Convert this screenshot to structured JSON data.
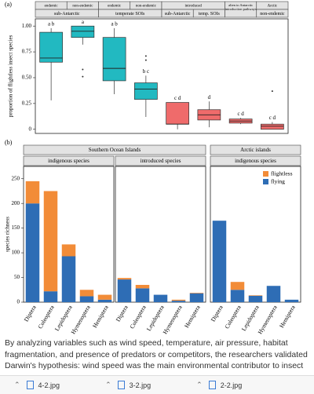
{
  "chart_data": [
    {
      "type": "boxplot",
      "panel_label": "(a)",
      "ylabel": "proportion of flightless insect species",
      "strip_top": [
        "endemic",
        "non-endemic",
        "endemic",
        "non-endemic",
        "introduced",
        "alien to Antarctic introduction pathways",
        "Arctic"
      ],
      "strip_bottom": [
        "sub-Antarctic",
        "temperate SOIs",
        "sub-Antarctic",
        "temp. SOIs",
        "non-endemic"
      ],
      "ylim": [
        -0.04,
        1.07
      ],
      "yticks": [
        0,
        0.25,
        {
          "value": 0.5,
          "label": "0.50"
        },
        0.75,
        {
          "value": 1,
          "label": "1.00"
        }
      ],
      "boxes": [
        {
          "low": 0.28,
          "q1": 0.65,
          "median": 0.69,
          "q3": 0.94,
          "high": 0.98,
          "outliers": [],
          "label": "a b",
          "color": "#22b9c1"
        },
        {
          "low": 0.82,
          "q1": 0.89,
          "median": 0.95,
          "q3": 1.0,
          "high": 1.0,
          "outliers": [
            0.58,
            0.51
          ],
          "label": "a",
          "color": "#22b9c1"
        },
        {
          "low": 0.34,
          "q1": 0.47,
          "median": 0.59,
          "q3": 0.89,
          "high": 0.98,
          "outliers": [],
          "label": "a b",
          "color": "#22b9c1"
        },
        {
          "low": 0.12,
          "q1": 0.29,
          "median": 0.39,
          "q3": 0.45,
          "high": 0.52,
          "outliers": [
            0.71,
            0.67
          ],
          "label": "b c",
          "color": "#22b9c1"
        },
        {
          "low": 0.0,
          "q1": 0.05,
          "median": 0.05,
          "q3": 0.26,
          "high": 0.26,
          "outliers": [],
          "label": "c d",
          "color": "#ef6b6b"
        },
        {
          "low": 0.02,
          "q1": 0.09,
          "median": 0.14,
          "q3": 0.19,
          "high": 0.27,
          "outliers": [],
          "label": "d",
          "color": "#ef6b6b"
        },
        {
          "low": 0.05,
          "q1": 0.06,
          "median": 0.08,
          "q3": 0.1,
          "high": 0.11,
          "outliers": [],
          "label": "c d",
          "color": "#ef6b6b"
        },
        {
          "low": 0.0,
          "q1": 0.0,
          "median": 0.03,
          "q3": 0.05,
          "high": 0.07,
          "outliers": [
            0.37
          ],
          "label": "c d",
          "color": "#ef6b6b"
        }
      ]
    },
    {
      "type": "stacked_bar",
      "panel_label": "(b)",
      "ylabel": "species richness",
      "groups": [
        "Southern Ocean Islands",
        "Arctic islands"
      ],
      "ylim": [
        0,
        275
      ],
      "yticks": [
        0,
        50,
        100,
        150,
        200,
        250
      ],
      "legend": "top-right",
      "series": [
        {
          "name": "flightless",
          "color": "#f28c38"
        },
        {
          "name": "flying",
          "color": "#2e6db5"
        }
      ],
      "facets": [
        {
          "name": "indigenous species",
          "categories": [
            "Diptera",
            "Coleoptera",
            "Lepidoptera",
            "Hymenoptera",
            "Hemiptera"
          ],
          "series": [
            {
              "values": [
                45,
                203,
                24,
                13,
                10
              ]
            },
            {
              "values": [
                200,
                22,
                93,
                12,
                5
              ]
            }
          ]
        },
        {
          "name": "introduced species",
          "categories": [
            "Diptera",
            "Coleoptera",
            "Lepidoptera",
            "Hymenoptera",
            "Hemiptera"
          ],
          "series": [
            {
              "values": [
                3,
                7,
                0,
                2,
                1
              ]
            },
            {
              "values": [
                46,
                28,
                15,
                3,
                18
              ]
            }
          ]
        },
        {
          "name": "indigenous species",
          "categories": [
            "Diptera",
            "Coleoptera",
            "Lepidoptera",
            "Hymenoptera",
            "Hemiptera"
          ],
          "series": [
            {
              "values": [
                0,
                16,
                1,
                0,
                0
              ]
            },
            {
              "values": [
                165,
                25,
                13,
                33,
                5
              ]
            }
          ]
        }
      ]
    }
  ],
  "caption": "By analyzing variables such as wind speed, temperature, air pressure, habitat fragmentation, and presence of predators or competitors, the researchers validated Darwin's hypothesis: wind speed was the main environmental contributor to insect",
  "downloads": [
    "4-2.jpg",
    "3-2.jpg",
    "2-2.jpg"
  ]
}
